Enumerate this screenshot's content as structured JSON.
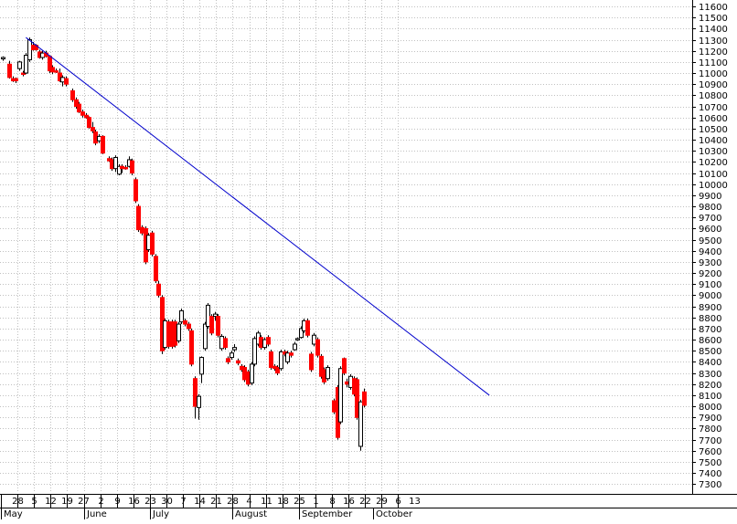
{
  "chart_data": {
    "type": "candlestick",
    "colors": {
      "up": "#ffffff",
      "down": "#ff0000",
      "trendline": "#0000cc",
      "grid": "#c0c0c0",
      "axis": "#000000"
    },
    "y_axis": {
      "min": 7300,
      "max": 11600,
      "step": 100,
      "position": "right",
      "tick_labels": [
        "11600",
        "11500",
        "11400",
        "11300",
        "11200",
        "11100",
        "11000",
        "10900",
        "10800",
        "10700",
        "10600",
        "10500",
        "10400",
        "10300",
        "10200",
        "10100",
        "10000",
        "9900",
        "9800",
        "9700",
        "9600",
        "9500",
        "9400",
        "9300",
        "9200",
        "9100",
        "9000",
        "8900",
        "8800",
        "8700",
        "8600",
        "8500",
        "8400",
        "8300",
        "8200",
        "8100",
        "8000",
        "7900",
        "7800",
        "7700",
        "7600",
        "7500",
        "7400",
        "7300"
      ]
    },
    "x_axis": {
      "day_labels": [
        "28",
        "5",
        "12",
        "19",
        "27",
        "2",
        "9",
        "16",
        "23",
        "30",
        "7",
        "14",
        "21",
        "28",
        "4",
        "11",
        "18",
        "25",
        "1",
        "8",
        "16",
        "22",
        "29",
        "6",
        "13"
      ],
      "month_labels": [
        {
          "label": "May",
          "at_week": 0
        },
        {
          "label": "June",
          "at_week": 5
        },
        {
          "label": "July",
          "at_week": 9
        },
        {
          "label": "August",
          "at_week": 14
        },
        {
          "label": "September",
          "at_week": 18
        },
        {
          "label": "October",
          "at_week": 22.5
        }
      ]
    },
    "grid": true,
    "trendline": {
      "from": {
        "day": 7,
        "value": 11320
      },
      "to": {
        "day": 147,
        "value": 8100
      }
    },
    "candles": [
      {
        "day": 0,
        "open": 11130,
        "high": 11150,
        "low": 11110,
        "close": 11140
      },
      {
        "day": 2,
        "open": 11080,
        "high": 11110,
        "low": 10950,
        "close": 10960
      },
      {
        "day": 3,
        "open": 10950,
        "high": 10970,
        "low": 10920,
        "close": 10930
      },
      {
        "day": 4,
        "open": 10950,
        "high": 10960,
        "low": 10910,
        "close": 10930
      },
      {
        "day": 5,
        "open": 11040,
        "high": 11110,
        "low": 11020,
        "close": 11100
      },
      {
        "day": 6,
        "open": 11000,
        "high": 11020,
        "low": 10970,
        "close": 10990
      },
      {
        "day": 7,
        "open": 11000,
        "high": 11180,
        "low": 10990,
        "close": 11160
      },
      {
        "day": 8,
        "open": 11120,
        "high": 11320,
        "low": 11100,
        "close": 11300
      },
      {
        "day": 9,
        "open": 11250,
        "high": 11280,
        "low": 11200,
        "close": 11210
      },
      {
        "day": 10,
        "open": 11250,
        "high": 11260,
        "low": 11200,
        "close": 11210
      },
      {
        "day": 11,
        "open": 11190,
        "high": 11210,
        "low": 11130,
        "close": 11140
      },
      {
        "day": 12,
        "open": 11140,
        "high": 11200,
        "low": 11120,
        "close": 11180
      },
      {
        "day": 13,
        "open": 11180,
        "high": 11200,
        "low": 11140,
        "close": 11150
      },
      {
        "day": 14,
        "open": 11150,
        "high": 11160,
        "low": 11000,
        "close": 11020
      },
      {
        "day": 15,
        "open": 11050,
        "high": 11070,
        "low": 10990,
        "close": 11010
      },
      {
        "day": 16,
        "open": 11020,
        "high": 11040,
        "low": 11000,
        "close": 11010
      },
      {
        "day": 17,
        "open": 11000,
        "high": 11040,
        "low": 10920,
        "close": 10930
      },
      {
        "day": 18,
        "open": 10920,
        "high": 10980,
        "low": 10880,
        "close": 10960
      },
      {
        "day": 19,
        "open": 10950,
        "high": 10970,
        "low": 10880,
        "close": 10900
      },
      {
        "day": 21,
        "open": 10840,
        "high": 10860,
        "low": 10740,
        "close": 10760
      },
      {
        "day": 22,
        "open": 10760,
        "high": 10780,
        "low": 10680,
        "close": 10700
      },
      {
        "day": 23,
        "open": 10720,
        "high": 10740,
        "low": 10640,
        "close": 10650
      },
      {
        "day": 24,
        "open": 10650,
        "high": 10670,
        "low": 10600,
        "close": 10620
      },
      {
        "day": 25,
        "open": 10620,
        "high": 10640,
        "low": 10590,
        "close": 10600
      },
      {
        "day": 26,
        "open": 10600,
        "high": 10610,
        "low": 10500,
        "close": 10510
      },
      {
        "day": 27,
        "open": 10510,
        "high": 10560,
        "low": 10460,
        "close": 10480
      },
      {
        "day": 28,
        "open": 10470,
        "high": 10490,
        "low": 10350,
        "close": 10370
      },
      {
        "day": 29,
        "open": 10390,
        "high": 10450,
        "low": 10370,
        "close": 10430
      },
      {
        "day": 30,
        "open": 10430,
        "high": 10440,
        "low": 10270,
        "close": 10280
      },
      {
        "day": 32,
        "open": 10230,
        "high": 10250,
        "low": 10200,
        "close": 10210
      },
      {
        "day": 33,
        "open": 10220,
        "high": 10240,
        "low": 10120,
        "close": 10140
      },
      {
        "day": 34,
        "open": 10140,
        "high": 10260,
        "low": 10110,
        "close": 10240
      },
      {
        "day": 35,
        "open": 10090,
        "high": 10180,
        "low": 10080,
        "close": 10160
      },
      {
        "day": 36,
        "open": 10160,
        "high": 10180,
        "low": 10100,
        "close": 10140
      },
      {
        "day": 37,
        "open": 10150,
        "high": 10170,
        "low": 10130,
        "close": 10140
      },
      {
        "day": 38,
        "open": 10160,
        "high": 10250,
        "low": 10150,
        "close": 10220
      },
      {
        "day": 39,
        "open": 10210,
        "high": 10230,
        "low": 10080,
        "close": 10100
      },
      {
        "day": 40,
        "open": 10040,
        "high": 10060,
        "low": 9830,
        "close": 9850
      },
      {
        "day": 41,
        "open": 9800,
        "high": 9820,
        "low": 9570,
        "close": 9590
      },
      {
        "day": 42,
        "open": 9610,
        "high": 9630,
        "low": 9540,
        "close": 9560
      },
      {
        "day": 43,
        "open": 9600,
        "high": 9620,
        "low": 9280,
        "close": 9300
      },
      {
        "day": 44,
        "open": 9410,
        "high": 9560,
        "low": 9390,
        "close": 9540
      },
      {
        "day": 45,
        "open": 9560,
        "high": 9580,
        "low": 9350,
        "close": 9370
      },
      {
        "day": 46,
        "open": 9350,
        "high": 9370,
        "low": 9110,
        "close": 9130
      },
      {
        "day": 47,
        "open": 9100,
        "high": 9130,
        "low": 8980,
        "close": 9000
      },
      {
        "day": 48,
        "open": 8980,
        "high": 9000,
        "low": 8470,
        "close": 8500
      },
      {
        "day": 49,
        "open": 8530,
        "high": 8790,
        "low": 8510,
        "close": 8770
      },
      {
        "day": 50,
        "open": 8760,
        "high": 8780,
        "low": 8520,
        "close": 8540
      },
      {
        "day": 51,
        "open": 8760,
        "high": 8780,
        "low": 8520,
        "close": 8540
      },
      {
        "day": 52,
        "open": 8760,
        "high": 8780,
        "low": 8530,
        "close": 8550
      },
      {
        "day": 53,
        "open": 8590,
        "high": 8760,
        "low": 8570,
        "close": 8740
      },
      {
        "day": 54,
        "open": 8760,
        "high": 8880,
        "low": 8740,
        "close": 8860
      },
      {
        "day": 55,
        "open": 8770,
        "high": 8790,
        "low": 8720,
        "close": 8740
      },
      {
        "day": 56,
        "open": 8740,
        "high": 8760,
        "low": 8680,
        "close": 8700
      },
      {
        "day": 57,
        "open": 8680,
        "high": 8700,
        "low": 8360,
        "close": 8380
      },
      {
        "day": 58,
        "open": 8250,
        "high": 8270,
        "low": 7890,
        "close": 8000
      },
      {
        "day": 59,
        "open": 7990,
        "high": 8110,
        "low": 7880,
        "close": 8090
      },
      {
        "day": 60,
        "open": 8290,
        "high": 8450,
        "low": 8210,
        "close": 8440
      },
      {
        "day": 61,
        "open": 8520,
        "high": 8760,
        "low": 8500,
        "close": 8740
      },
      {
        "day": 62,
        "open": 8720,
        "high": 8930,
        "low": 8700,
        "close": 8910
      },
      {
        "day": 63,
        "open": 8810,
        "high": 8830,
        "low": 8640,
        "close": 8660
      },
      {
        "day": 64,
        "open": 8810,
        "high": 8850,
        "low": 8770,
        "close": 8830
      },
      {
        "day": 65,
        "open": 8810,
        "high": 8830,
        "low": 8620,
        "close": 8640
      },
      {
        "day": 66,
        "open": 8520,
        "high": 8650,
        "low": 8500,
        "close": 8630
      },
      {
        "day": 67,
        "open": 8610,
        "high": 8630,
        "low": 8510,
        "close": 8530
      },
      {
        "day": 68,
        "open": 8430,
        "high": 8450,
        "low": 8380,
        "close": 8400
      },
      {
        "day": 69,
        "open": 8440,
        "high": 8500,
        "low": 8420,
        "close": 8480
      },
      {
        "day": 70,
        "open": 8510,
        "high": 8560,
        "low": 8490,
        "close": 8530
      },
      {
        "day": 71,
        "open": 8410,
        "high": 8430,
        "low": 8370,
        "close": 8390
      },
      {
        "day": 72,
        "open": 8360,
        "high": 8380,
        "low": 8310,
        "close": 8330
      },
      {
        "day": 73,
        "open": 8350,
        "high": 8370,
        "low": 8220,
        "close": 8240
      },
      {
        "day": 74,
        "open": 8310,
        "high": 8330,
        "low": 8180,
        "close": 8200
      },
      {
        "day": 75,
        "open": 8210,
        "high": 8400,
        "low": 8190,
        "close": 8380
      },
      {
        "day": 76,
        "open": 8380,
        "high": 8630,
        "low": 8360,
        "close": 8610
      },
      {
        "day": 77,
        "open": 8560,
        "high": 8680,
        "low": 8540,
        "close": 8660
      },
      {
        "day": 78,
        "open": 8620,
        "high": 8640,
        "low": 8510,
        "close": 8530
      },
      {
        "day": 79,
        "open": 8530,
        "high": 8620,
        "low": 8510,
        "close": 8600
      },
      {
        "day": 80,
        "open": 8620,
        "high": 8640,
        "low": 8540,
        "close": 8560
      },
      {
        "day": 81,
        "open": 8490,
        "high": 8510,
        "low": 8330,
        "close": 8350
      },
      {
        "day": 82,
        "open": 8360,
        "high": 8380,
        "low": 8320,
        "close": 8340
      },
      {
        "day": 83,
        "open": 8350,
        "high": 8370,
        "low": 8280,
        "close": 8300
      },
      {
        "day": 84,
        "open": 8340,
        "high": 8510,
        "low": 8320,
        "close": 8490
      },
      {
        "day": 85,
        "open": 8490,
        "high": 8510,
        "low": 8450,
        "close": 8470
      },
      {
        "day": 86,
        "open": 8400,
        "high": 8500,
        "low": 8380,
        "close": 8480
      },
      {
        "day": 87,
        "open": 8480,
        "high": 8500,
        "low": 8440,
        "close": 8460
      },
      {
        "day": 88,
        "open": 8510,
        "high": 8580,
        "low": 8500,
        "close": 8560
      },
      {
        "day": 89,
        "open": 8600,
        "high": 8620,
        "low": 8590,
        "close": 8610
      },
      {
        "day": 90,
        "open": 8620,
        "high": 8720,
        "low": 8610,
        "close": 8700
      },
      {
        "day": 91,
        "open": 8680,
        "high": 8790,
        "low": 8660,
        "close": 8770
      },
      {
        "day": 92,
        "open": 8770,
        "high": 8790,
        "low": 8620,
        "close": 8640
      },
      {
        "day": 93,
        "open": 8470,
        "high": 8490,
        "low": 8310,
        "close": 8330
      },
      {
        "day": 94,
        "open": 8560,
        "high": 8660,
        "low": 8540,
        "close": 8640
      },
      {
        "day": 95,
        "open": 8600,
        "high": 8620,
        "low": 8440,
        "close": 8460
      },
      {
        "day": 96,
        "open": 8450,
        "high": 8470,
        "low": 8250,
        "close": 8270
      },
      {
        "day": 97,
        "open": 8330,
        "high": 8350,
        "low": 8200,
        "close": 8220
      },
      {
        "day": 98,
        "open": 8250,
        "high": 8370,
        "low": 8230,
        "close": 8350
      },
      {
        "day": 100,
        "open": 8050,
        "high": 8070,
        "low": 7930,
        "close": 7950
      },
      {
        "day": 101,
        "open": 8170,
        "high": 8190,
        "low": 7700,
        "close": 7720
      },
      {
        "day": 102,
        "open": 7860,
        "high": 8360,
        "low": 7840,
        "close": 8340
      },
      {
        "day": 103,
        "open": 8430,
        "high": 8440,
        "low": 8280,
        "close": 8300
      },
      {
        "day": 104,
        "open": 8220,
        "high": 8250,
        "low": 8170,
        "close": 8200
      },
      {
        "day": 105,
        "open": 8170,
        "high": 8290,
        "low": 8150,
        "close": 8270
      },
      {
        "day": 106,
        "open": 8250,
        "high": 8270,
        "low": 8090,
        "close": 8110
      },
      {
        "day": 107,
        "open": 8240,
        "high": 8260,
        "low": 7880,
        "close": 7900
      },
      {
        "day": 108,
        "open": 7640,
        "high": 8060,
        "low": 7600,
        "close": 8040
      },
      {
        "day": 109,
        "open": 8130,
        "high": 8160,
        "low": 7990,
        "close": 8010
      }
    ]
  }
}
